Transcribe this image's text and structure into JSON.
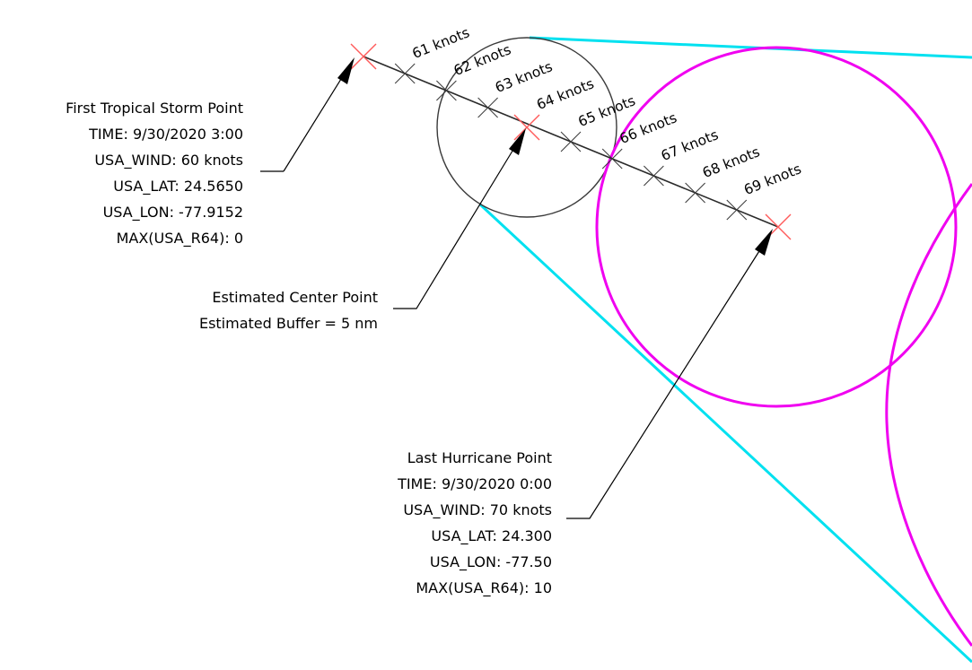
{
  "colors": {
    "swath": "#00e1f0",
    "hurricane_buffer": "#f000f0",
    "estimated_buffer": "#3a3a3a",
    "track_line": "#2a2a2a",
    "endpoint_marker": "#ff5a5a",
    "interpolation_marker": "#3a3a3a"
  },
  "interpolated_points": [
    {
      "label": "61 knots"
    },
    {
      "label": "62 knots"
    },
    {
      "label": "63 knots"
    },
    {
      "label": "64 knots"
    },
    {
      "label": "65 knots"
    },
    {
      "label": "66 knots"
    },
    {
      "label": "67 knots"
    },
    {
      "label": "68 knots"
    },
    {
      "label": "69 knots"
    }
  ],
  "first_point": {
    "lines": [
      "First Tropical Storm Point",
      "TIME: 9/30/2020 3:00",
      "USA_WIND: 60 knots",
      "USA_LAT: 24.5650",
      "USA_LON: -77.9152",
      "MAX(USA_R64): 0"
    ]
  },
  "estimated_point": {
    "lines": [
      "Estimated Center Point",
      "Estimated Buffer = 5 nm"
    ]
  },
  "last_point": {
    "lines": [
      "Last Hurricane Point",
      "TIME: 9/30/2020 0:00",
      "USA_WIND: 70 knots",
      "USA_LAT: 24.300",
      "USA_LON: -77.50",
      "MAX(USA_R64): 10"
    ]
  }
}
